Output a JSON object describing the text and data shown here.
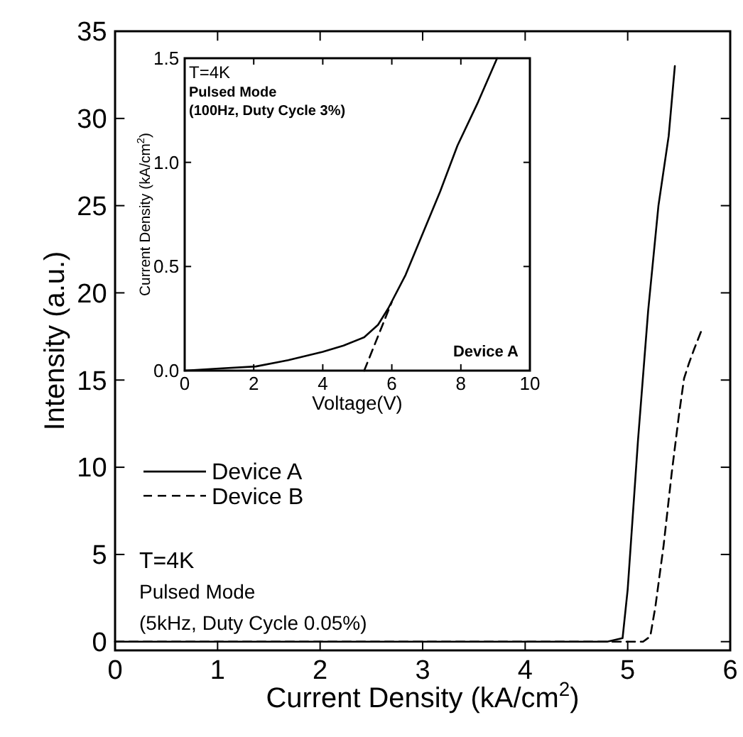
{
  "chart_data": [
    {
      "type": "line",
      "xlabel": "Current Density (kA/cm$^{2}$)",
      "ylabel": "Intensity (a.u.)",
      "xlim": [
        0,
        6
      ],
      "ylim": [
        -0.5,
        35
      ],
      "xticks": [
        0,
        1,
        2,
        3,
        4,
        5,
        6
      ],
      "yticks": [
        0,
        5,
        10,
        15,
        20,
        25,
        30,
        35
      ],
      "legend": "left",
      "annotations": [
        "T=4K",
        "Pulsed Mode",
        "(5kHz, Duty Cycle 0.05%)"
      ],
      "series": [
        {
          "name": "Device A",
          "color": "#000000",
          "line_style": "solid",
          "x": [
            0,
            4.8,
            4.95,
            5.0,
            5.1,
            5.2,
            5.3,
            5.4,
            5.46
          ],
          "values": [
            0,
            0,
            0.2,
            3,
            11.5,
            19,
            25,
            29,
            33
          ]
        },
        {
          "name": "Device B",
          "color": "#000000",
          "line_style": "dashed",
          "x": [
            0,
            5.15,
            5.22,
            5.27,
            5.35,
            5.43,
            5.5,
            5.55,
            5.6,
            5.65,
            5.73
          ],
          "values": [
            0,
            0,
            0.3,
            2,
            5.5,
            9.7,
            13,
            15.1,
            16,
            16.8,
            18
          ]
        }
      ]
    },
    {
      "type": "line",
      "xlabel": "Voltage(V)",
      "ylabel": "Current Density (kA/cm$^{2}$)",
      "xlim": [
        0,
        10
      ],
      "ylim": [
        0,
        1.5
      ],
      "xticks": [
        0,
        2,
        4,
        6,
        8,
        10
      ],
      "yticks": [
        {
          "value": 0,
          "label": "0.0"
        },
        0.5,
        {
          "value": 1,
          "label": "1.0"
        },
        1.5
      ],
      "annotations": [
        "T=4K",
        "Pulsed Mode",
        "(100Hz, Duty Cycle 3%)",
        "Device A"
      ],
      "series": [
        {
          "color": "#000000",
          "line_style": "solid",
          "x": [
            0,
            1,
            2.06,
            3,
            4.0,
            4.6,
            5.2,
            5.6,
            5.9,
            6.4,
            6.85,
            7.4,
            7.9,
            8.5,
            9.05
          ],
          "values": [
            0,
            0.01,
            0.02,
            0.05,
            0.09,
            0.12,
            0.16,
            0.22,
            0.3,
            0.46,
            0.64,
            0.86,
            1.08,
            1.29,
            1.5
          ]
        },
        {
          "color": "#000000",
          "line_style": "dashed",
          "x": [
            5.2,
            6.0
          ],
          "values": [
            0,
            0.33
          ]
        }
      ]
    }
  ]
}
